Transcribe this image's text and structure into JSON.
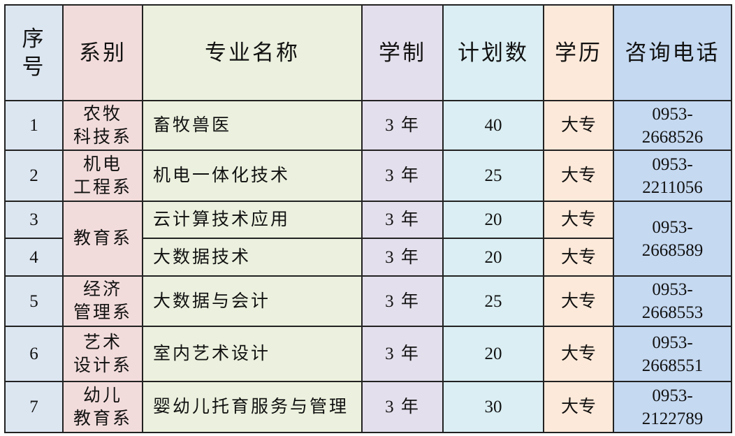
{
  "headers": [
    "序号",
    "系别",
    "专业名称",
    "学制",
    "计划数",
    "学历",
    "咨询电话"
  ],
  "rows": [
    {
      "no": "1",
      "dept": [
        "农牧",
        "科技系"
      ],
      "major": "畜牧兽医",
      "years": "3 年",
      "plan": "40",
      "level": "大专",
      "phone": [
        "0953-",
        "2668526"
      ]
    },
    {
      "no": "2",
      "dept": [
        "机电",
        "工程系"
      ],
      "major": "机电一体化技术",
      "years": "3 年",
      "plan": "25",
      "level": "大专",
      "phone": [
        "0953-",
        "2211056"
      ]
    },
    {
      "no": "3",
      "dept": [
        "教育系"
      ],
      "major": "云计算技术应用",
      "years": "3 年",
      "plan": "20",
      "level": "大专",
      "phone": [
        "0953-",
        "2668589"
      ]
    },
    {
      "no": "4",
      "major": "大数据技术",
      "years": "3 年",
      "plan": "20",
      "level": "大专"
    },
    {
      "no": "5",
      "dept": [
        "经济",
        "管理系"
      ],
      "major": "大数据与会计",
      "years": "3 年",
      "plan": "25",
      "level": "大专",
      "phone": [
        "0953-",
        "2668553"
      ]
    },
    {
      "no": "6",
      "dept": [
        "艺术",
        "设计系"
      ],
      "major": "室内艺术设计",
      "years": "3 年",
      "plan": "20",
      "level": "大专",
      "phone": [
        "0953-",
        "2668551"
      ]
    },
    {
      "no": "7",
      "dept": [
        "幼儿",
        "教育系"
      ],
      "major": "婴幼儿托育服务与管理",
      "years": "3 年",
      "plan": "30",
      "level": "大专",
      "phone": [
        "0953-",
        "2122789"
      ]
    }
  ],
  "colors": {
    "col1": "#dce6f1",
    "col2": "#f2dcdb",
    "col3": "#ebf1de",
    "col4": "#e4dfec",
    "col5": "#daeef3",
    "col6": "#fde9d9",
    "col7": "#c5d9f1"
  }
}
